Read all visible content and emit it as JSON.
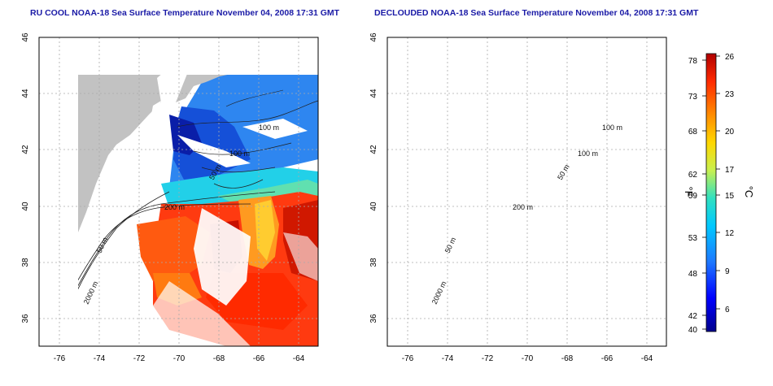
{
  "panels": [
    {
      "title": "RU COOL NOAA-18 Sea Surface Temperature November 04, 2008 17:31 GMT",
      "x_ticks": [
        "-76",
        "-74",
        "-72",
        "-70",
        "-68",
        "-66",
        "-64"
      ],
      "y_ticks": [
        "46",
        "44",
        "42",
        "40",
        "38",
        "36"
      ],
      "contour_labels": [
        "100 m",
        "100 m",
        "50 m",
        "200 m",
        "50 m",
        "2000 m"
      ]
    },
    {
      "title": "DECLOUDED NOAA-18 Sea Surface Temperature November 04, 2008 17:31 GMT",
      "x_ticks": [
        "-76",
        "-74",
        "-72",
        "-70",
        "-68",
        "-66",
        "-64"
      ],
      "y_ticks": [
        "46",
        "44",
        "42",
        "40",
        "38",
        "36"
      ],
      "contour_labels": [
        "100 m",
        "100 m",
        "50 m",
        "200 m",
        "50 m",
        "2000 m"
      ]
    }
  ],
  "colorbar": {
    "fahrenheit_unit": "°F",
    "celsius_unit": "°C",
    "fahrenheit_ticks": [
      "78",
      "73",
      "68",
      "62",
      "59",
      "53",
      "48",
      "42",
      "40"
    ],
    "celsius_ticks": [
      "26",
      "23",
      "20",
      "17",
      "15",
      "12",
      "9",
      "6"
    ],
    "range_c": [
      4,
      26
    ],
    "colors": [
      "#00008b",
      "#0000ff",
      "#1e78ff",
      "#00c8ff",
      "#30e0c0",
      "#c8f050",
      "#ffd700",
      "#ff8c00",
      "#ff2a00",
      "#b00000"
    ]
  }
}
